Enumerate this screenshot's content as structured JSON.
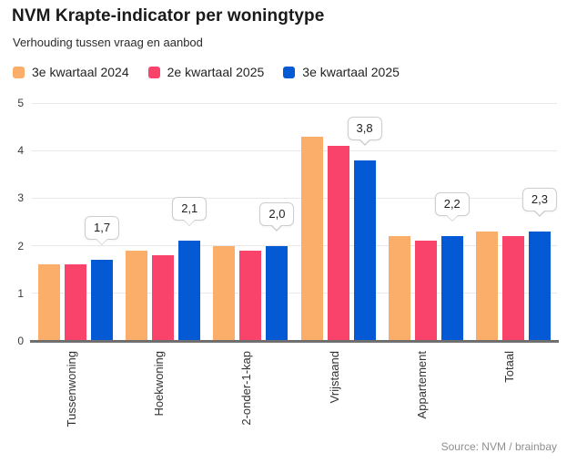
{
  "header": {
    "title": "NVM Krapte-indicator per woningtype",
    "subtitle": "Verhouding tussen vraag en aanbod"
  },
  "footer": {
    "source": "Source: NVM / brainbay"
  },
  "colors": {
    "series_orange": "#FBAD6A",
    "series_pink": "#FA436B",
    "series_blue": "#0459D4",
    "gridline": "#e8e8e8",
    "axis_line": "#6f6f6f",
    "title_text": "#1a1a1a",
    "source_text": "#8f8f8f"
  },
  "chart_data": {
    "type": "bar",
    "title": "NVM Krapte-indicator per woningtype",
    "subtitle": "Verhouding tussen vraag en aanbod",
    "categories": [
      "Tussenwoning",
      "Hoekwoning",
      "2-onder-1-kap",
      "Vrijstaand",
      "Appartement",
      "Totaal"
    ],
    "series": [
      {
        "name": "3e kwartaal 2024",
        "color": "#FBAD6A",
        "values": [
          1.6,
          1.9,
          2.0,
          4.3,
          2.2,
          2.3
        ]
      },
      {
        "name": "2e kwartaal 2025",
        "color": "#FA436B",
        "values": [
          1.6,
          1.8,
          1.9,
          4.1,
          2.1,
          2.2
        ]
      },
      {
        "name": "3e kwartaal 2025",
        "color": "#0459D4",
        "values": [
          1.7,
          2.1,
          2.0,
          3.8,
          2.2,
          2.3
        ]
      }
    ],
    "data_labels": {
      "series_index": 2,
      "values": [
        "1,7",
        "2,1",
        "2,0",
        "3,8",
        "2,2",
        "2,3"
      ]
    },
    "xlabel": "",
    "ylabel": "",
    "ylim": [
      0,
      5
    ],
    "yticks": [
      0,
      1,
      2,
      3,
      4,
      5
    ],
    "grid": true,
    "legend_position": "top",
    "x_tick_rotation": -90
  }
}
